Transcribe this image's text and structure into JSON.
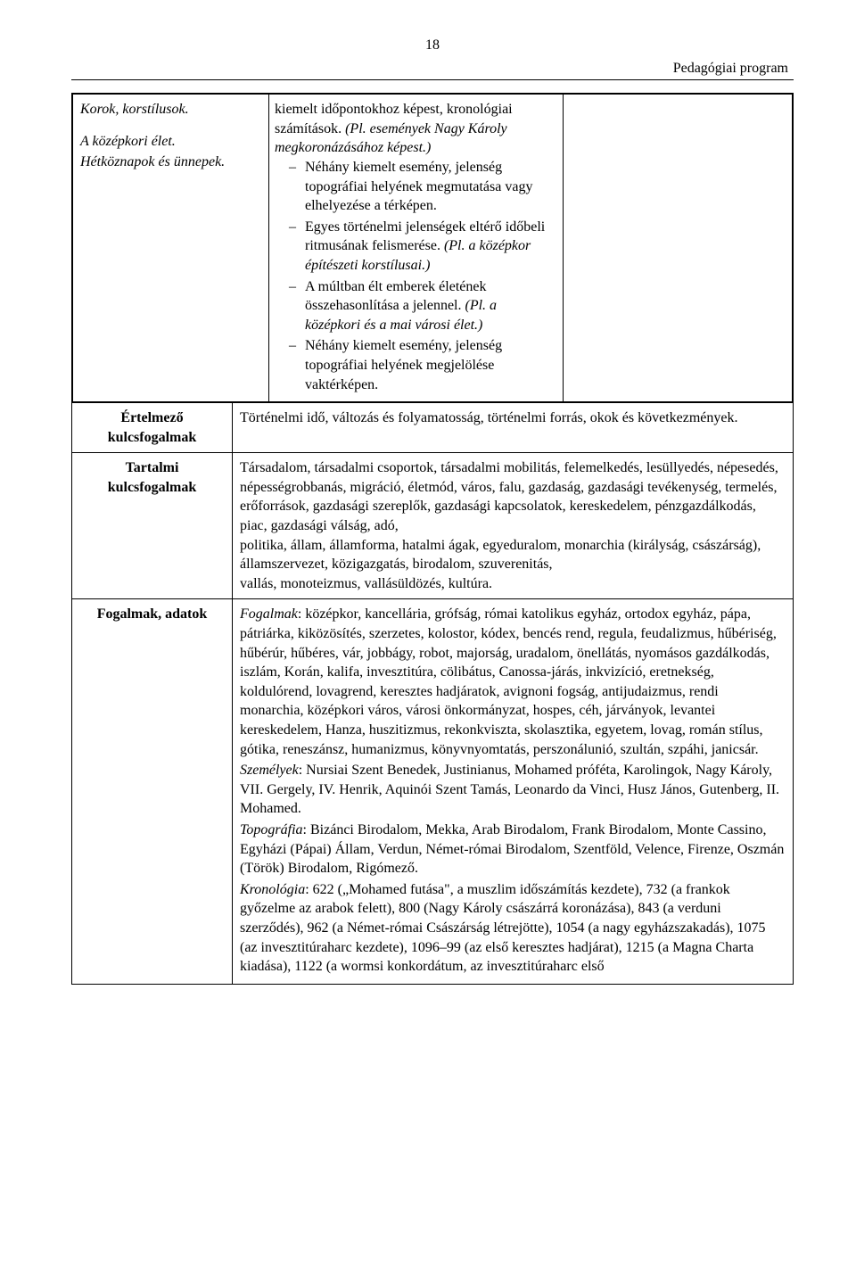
{
  "page": {
    "number": "18",
    "header_right": "Pedagógiai program"
  },
  "row0": {
    "left": {
      "line1": "Korok, korstílusok.",
      "line2": "A középkori élet.",
      "line3": "Hétköznapok és ünnepek."
    },
    "right": {
      "lead": "kiemelt időpontokhoz képest, kronológiai számítások. (Pl. események Nagy Károly megkoronázásához képest.)",
      "bul1": "Néhány kiemelt esemény, jelenség topográfiai helyének megmutatása vagy elhelyezése a térképen.",
      "bul2": "Egyes történelmi jelenségek eltérő időbeli ritmusának felismerése. (Pl. a középkor építészeti korstílusai.)",
      "bul3": "A múltban élt emberek életének összehasonlítása a jelennel. (Pl. a középkori és a mai városi élet.)",
      "bul4": "Néhány kiemelt esemény, jelenség topográfiai helyének megjelölése vaktérképen."
    }
  },
  "row1": {
    "label_line1": "Értelmező",
    "label_line2": "kulcsfogalmak",
    "body": "Történelmi idő, változás és folyamatosság, történelmi forrás, okok és következmények."
  },
  "row2": {
    "label_line1": "Tartalmi",
    "label_line2": "kulcsfogalmak",
    "body": "Társadalom, társadalmi csoportok, társadalmi mobilitás, felemelkedés, lesüllyedés, népesedés, népességrobbanás, migráció, életmód, város, falu, gazdaság, gazdasági tevékenység, termelés, erőforrások, gazdasági szereplők, gazdasági kapcsolatok, kereskedelem, pénzgazdálkodás, piac, gazdasági válság, adó,\npolitika, állam, államforma, hatalmi ágak, egyeduralom, monarchia (királyság, császárság), államszervezet, közigazgatás, birodalom, szuverenitás,\nvallás, monoteizmus, vallásüldözés, kultúra."
  },
  "row3": {
    "label": "Fogalmak, adatok",
    "fogalmak_label": "Fogalmak",
    "fogalmak_text": ": középkor, kancellária, grófság, római katolikus egyház, ortodox egyház, pápa, pátriárka, kiközösítés, szerzetes, kolostor, kódex, bencés rend, regula, feudalizmus, hűbériség, hűbérúr, hűbéres, vár, jobbágy, robot, majorság, uradalom, önellátás, nyomásos gazdálkodás, iszlám, Korán, kalifa, invesztitúra, cölibátus, Canossa-járás, inkvizíció, eretnekség, koldulórend, lovagrend, keresztes hadjáratok, avignoni fogság, antijudaizmus, rendi monarchia, középkori város, városi önkormányzat, hospes, céh, járványok, levantei kereskedelem, Hanza, huszitizmus, rekonkviszta, skolasztika, egyetem, lovag, román stílus, gótika, reneszánsz, humanizmus, könyvnyomtatás, perszonálunió, szultán, szpáhi, janicsár.",
    "szemelyek_label": "Személyek",
    "szemelyek_text": ": Nursiai Szent Benedek, Justinianus, Mohamed próféta, Karolingok, Nagy Károly, VII. Gergely, IV. Henrik, Aquinói Szent Tamás, Leonardo da Vinci, Husz János, Gutenberg, II. Mohamed.",
    "topografia_label": "Topográfia",
    "topografia_text": ": Bizánci Birodalom, Mekka, Arab Birodalom, Frank Birodalom, Monte Cassino, Egyházi (Pápai) Állam, Verdun, Német-római Birodalom, Szentföld, Velence, Firenze, Oszmán (Török) Birodalom, Rigómező.",
    "kronologia_label": "Kronológia",
    "kronologia_text": ": 622 („Mohamed futása\", a muszlim időszámítás kezdete), 732 (a frankok győzelme az arabok felett), 800 (Nagy Károly császárrá koronázása), 843 (a verduni szerződés), 962 (a Német-római Császárság létrejötte), 1054 (a nagy egyházszakadás), 1075 (az invesztitúraharc kezdete), 1096–99 (az első keresztes hadjárat), 1215 (a Magna Charta kiadása), 1122 (a wormsi konkordátum, az invesztitúraharc első"
  }
}
